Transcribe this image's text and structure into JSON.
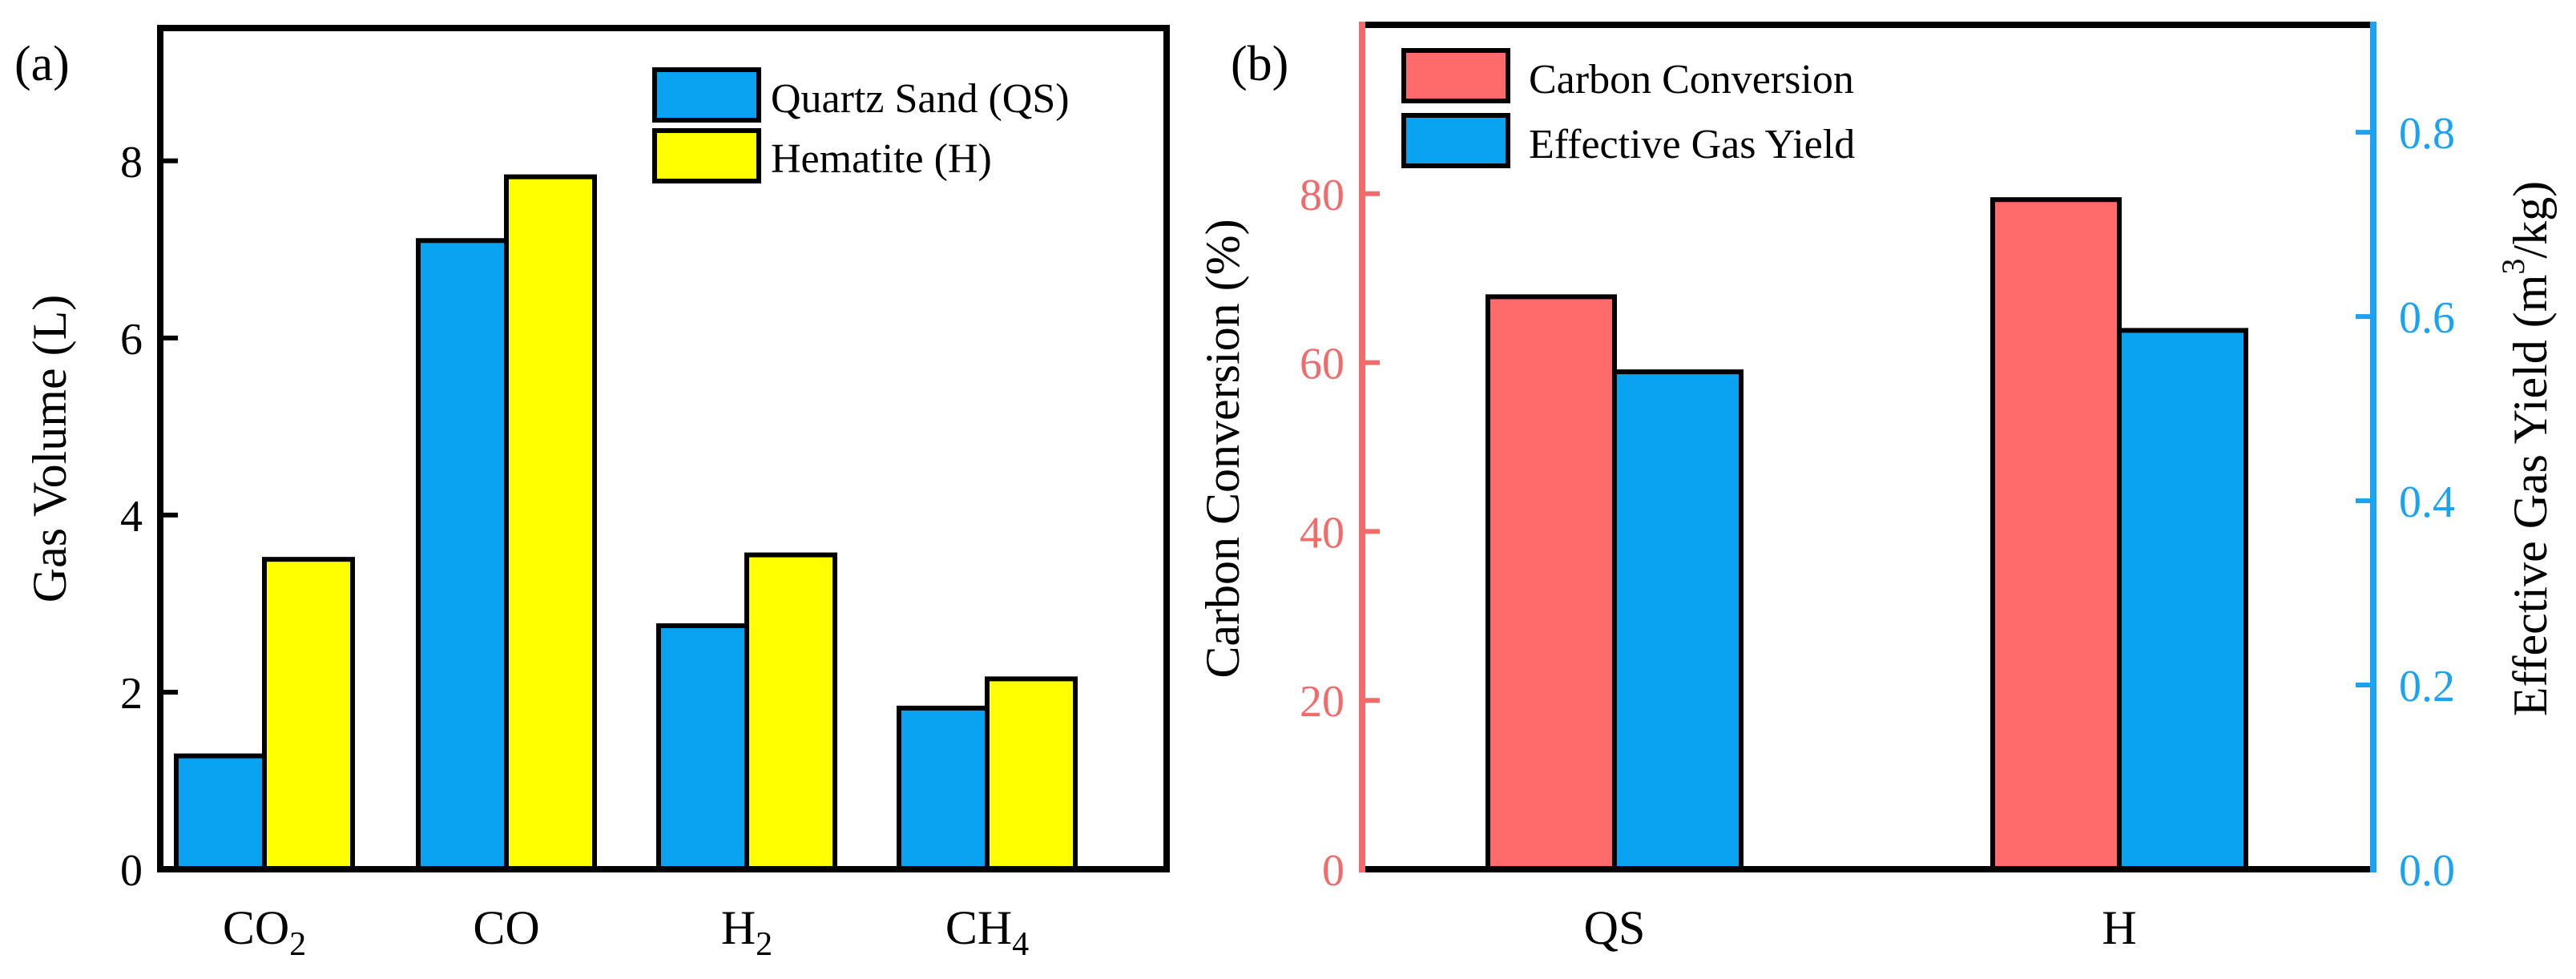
{
  "colors": {
    "qs_blue": "#0aa3f2",
    "hematite_yellow": "#ffff00",
    "carbon_red": "#ff6b6b",
    "gas_blue": "#0aa3f2",
    "left_axis_red": "#f26b6b",
    "right_axis_blue": "#1aa3f2",
    "black": "#000000"
  },
  "chart_data": [
    {
      "panel_label": "(a)",
      "type": "bar",
      "categories": [
        {
          "main": "CO",
          "sub": "2"
        },
        {
          "main": "CO",
          "sub": ""
        },
        {
          "main": "H",
          "sub": "2"
        },
        {
          "main": "CH",
          "sub": "4"
        }
      ],
      "series": [
        {
          "name": "Quartz Sand (QS)",
          "values": [
            1.28,
            7.1,
            2.75,
            1.82
          ]
        },
        {
          "name": "Hematite (H)",
          "values": [
            3.5,
            7.82,
            3.55,
            2.15
          ]
        }
      ],
      "ylabel": "Gas Volume (L)",
      "ylim": [
        0,
        9.5
      ],
      "yticks": [
        "0",
        "2",
        "4",
        "6",
        "8"
      ],
      "legend": "top-right"
    },
    {
      "panel_label": "(b)",
      "type": "bar",
      "categories": [
        "QS",
        "H"
      ],
      "series": [
        {
          "name": "Carbon Conversion",
          "axis": "left",
          "values": [
            67.8,
            79.3
          ]
        },
        {
          "name": "Effective Gas Yield",
          "axis": "right",
          "values": [
            0.54,
            0.585
          ]
        }
      ],
      "ylabel_left": "Carbon Conversion (%)",
      "ylim_left": [
        0,
        100
      ],
      "yticks_left": [
        "0",
        "20",
        "40",
        "60",
        "80"
      ],
      "ylabel_right": "Effective Gas Yield (m",
      "ylabel_right_sup": "3",
      "ylabel_right_end": "/kg)",
      "ylim_right": [
        0,
        0.9167
      ],
      "yticks_right": [
        "0.0",
        "0.2",
        "0.4",
        "0.6",
        "0.8"
      ],
      "legend": "top-left"
    }
  ]
}
